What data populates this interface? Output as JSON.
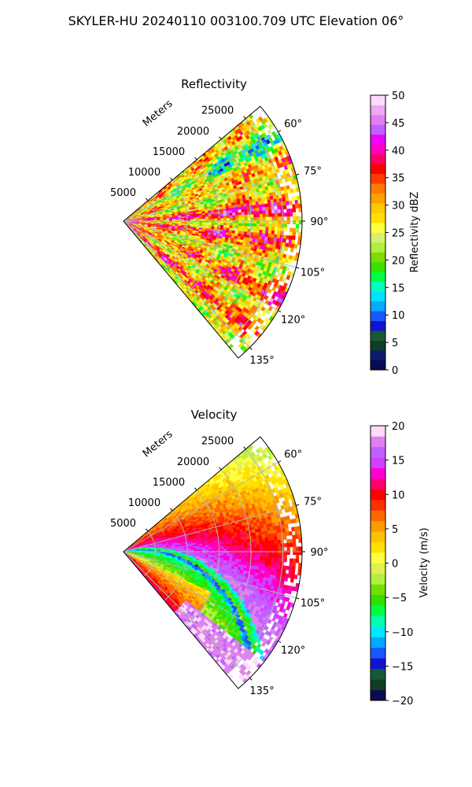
{
  "suptitle": "SKYLER-HU  20240110  003100.709 UTC Elevation 06°",
  "chart_data": [
    {
      "type": "heatmap",
      "projection": "polar-sector",
      "title": "Reflectivity",
      "range_axis_label": "Meters",
      "range_ticks": [
        5000,
        10000,
        15000,
        20000,
        25000
      ],
      "range_tick_labels": [
        "5000",
        "10000",
        "15000",
        "20000",
        "25000"
      ],
      "rlim": [
        0,
        28000
      ],
      "azimuth_range_deg": [
        50,
        140
      ],
      "azimuth_ticks": [
        60,
        75,
        90,
        105,
        120,
        135
      ],
      "azimuth_tick_labels": [
        "60°",
        "75°",
        "90°",
        "105°",
        "120°",
        "135°"
      ],
      "grid": true,
      "colorbar": {
        "label": "Reflectivity dBZ",
        "min": 0,
        "max": 50,
        "ticks": [
          0,
          5,
          10,
          15,
          20,
          25,
          30,
          35,
          40,
          45,
          50
        ],
        "tick_labels": [
          "0",
          "5",
          "10",
          "15",
          "20",
          "25",
          "30",
          "35",
          "40",
          "45",
          "50"
        ]
      },
      "field_summary": {
        "typical_dbz": [
          22,
          38
        ],
        "strong_bands_dbz": 37,
        "strong_band_azimuths_deg": [
          86,
          96,
          118,
          132
        ],
        "weak_region_azimuths_deg": [
          55,
          72
        ]
      }
    },
    {
      "type": "heatmap",
      "projection": "polar-sector",
      "title": "Velocity",
      "range_axis_label": "Meters",
      "range_ticks": [
        5000,
        10000,
        15000,
        20000,
        25000
      ],
      "range_tick_labels": [
        "5000",
        "10000",
        "15000",
        "20000",
        "25000"
      ],
      "rlim": [
        0,
        28000
      ],
      "azimuth_range_deg": [
        50,
        140
      ],
      "azimuth_ticks": [
        60,
        75,
        90,
        105,
        120,
        135
      ],
      "azimuth_tick_labels": [
        "60°",
        "75°",
        "90°",
        "105°",
        "120°",
        "135°"
      ],
      "grid": true,
      "colorbar": {
        "label": "Velocity (m/s)",
        "min": -20,
        "max": 20,
        "ticks": [
          -20,
          -15,
          -10,
          -5,
          0,
          5,
          10,
          15,
          20
        ],
        "tick_labels": [
          "−20",
          "−15",
          "−10",
          "−5",
          "0",
          "5",
          "10",
          "15",
          "20"
        ]
      },
      "field_summary": {
        "north_outer_mps": 14,
        "south_inner_mps": -12,
        "aliasing_boundary": true
      }
    }
  ],
  "colormaps": {
    "reflectivity": [
      "#0a0a50",
      "#0b1d6e",
      "#0f3d26",
      "#155a34",
      "#1212d0",
      "#1a58ff",
      "#0aa8ff",
      "#00e0ff",
      "#00ffc0",
      "#00ff40",
      "#38e000",
      "#7ddc00",
      "#b0f040",
      "#d8f070",
      "#ffff40",
      "#ffe000",
      "#ffc800",
      "#ffa000",
      "#ff7a00",
      "#ff3c00",
      "#ff0000",
      "#ff0060",
      "#ff00c0",
      "#f000ff",
      "#c060ff",
      "#e080f0",
      "#f0a8f0",
      "#fcdcfc"
    ],
    "velocity": [
      "#0a0a50",
      "#0f3d26",
      "#155a34",
      "#1212d0",
      "#1a58ff",
      "#00a8ff",
      "#00e8ff",
      "#00ffb0",
      "#00ff40",
      "#30e000",
      "#70e000",
      "#b0f040",
      "#e0f050",
      "#ffff40",
      "#ffe000",
      "#ffc000",
      "#ff9a00",
      "#ff6800",
      "#ff3000",
      "#ff0000",
      "#ff0070",
      "#ff00d0",
      "#d040ff",
      "#c060ff",
      "#e080f0",
      "#fcdcfc"
    ]
  }
}
